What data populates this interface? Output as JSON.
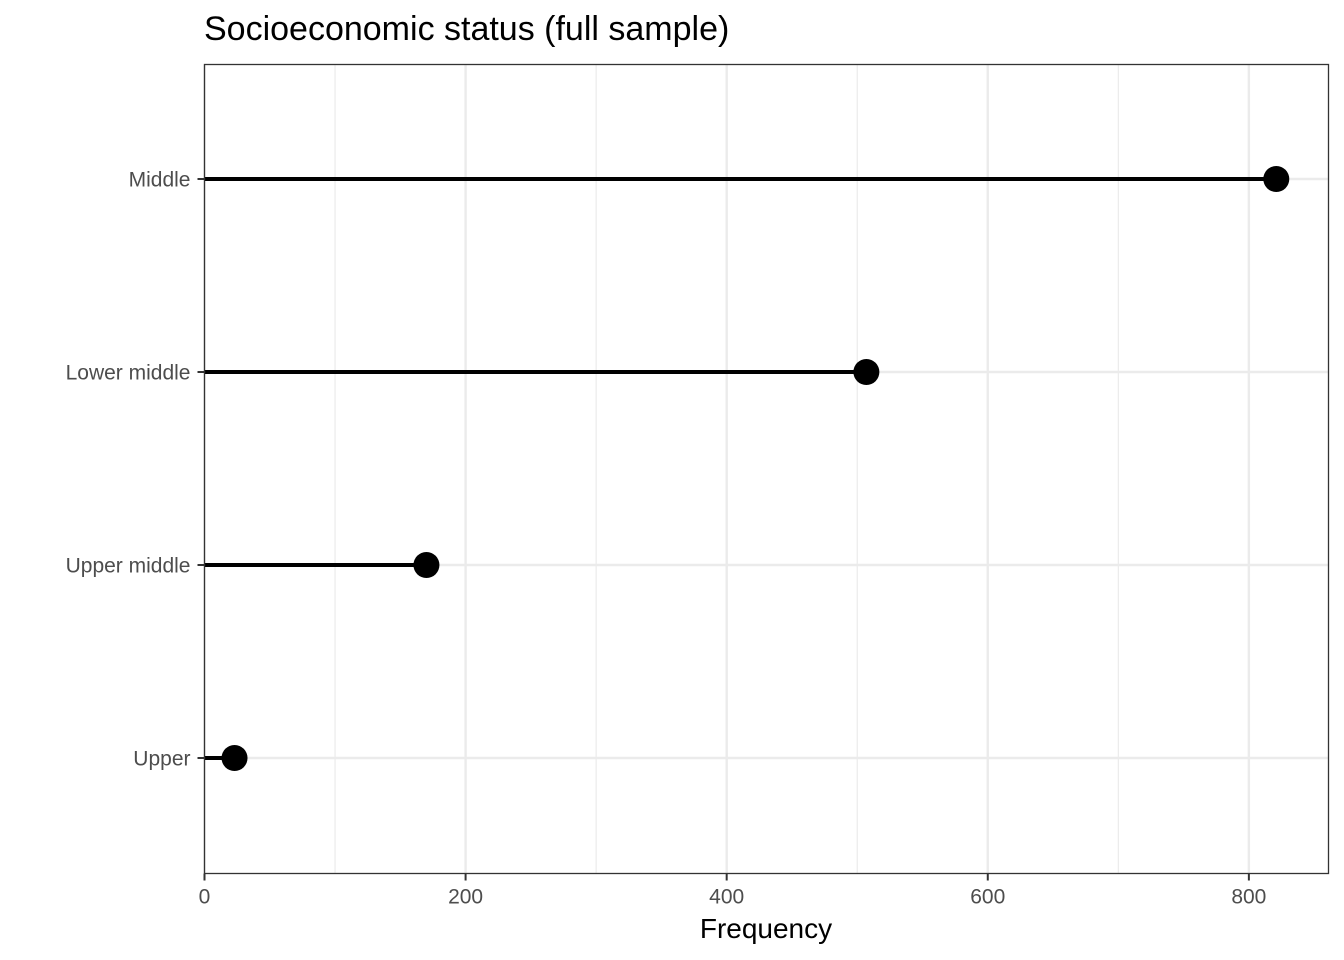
{
  "chart_data": {
    "type": "lollipop",
    "orientation": "horizontal",
    "title": "Socioeconomic status (full sample)",
    "xlabel": "Frequency",
    "ylabel": "",
    "categories": [
      "Upper",
      "Upper middle",
      "Lower middle",
      "Middle"
    ],
    "values": [
      23,
      170,
      507,
      821
    ],
    "xlim": [
      0,
      861
    ],
    "xticks": [
      0,
      200,
      400,
      600,
      800
    ],
    "xtick_labels": [
      "0",
      "200",
      "400",
      "600",
      "800"
    ],
    "grid": true,
    "legend": "none",
    "colors": {
      "mark": "#000000",
      "grid": "#ebebeb",
      "border": "#333333",
      "tick_text": "#4d4d4d"
    }
  }
}
